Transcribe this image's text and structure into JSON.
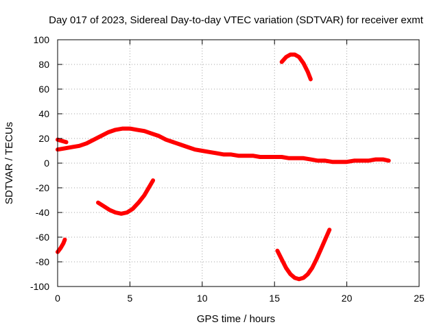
{
  "chart_data": {
    "type": "scatter",
    "title": "Day 017 of 2023, Sidereal Day-to-day VTEC variation (SDTVAR) for receiver exmt",
    "xlabel": "GPS time / hours",
    "ylabel": "SDTVAR / TECUs",
    "xlim": [
      0,
      25
    ],
    "ylim": [
      -100,
      100
    ],
    "xticks": [
      0,
      5,
      10,
      15,
      20,
      25
    ],
    "xtick_labels": [
      "0",
      "5",
      "10",
      "15",
      "20",
      "25"
    ],
    "yticks": [
      -100,
      -80,
      -60,
      -40,
      -20,
      0,
      20,
      40,
      60,
      80,
      100
    ],
    "ytick_labels": [
      "-100",
      "-80",
      "-60",
      "-40",
      "-20",
      "0",
      "20",
      "40",
      "60",
      "80",
      "100"
    ],
    "grid": true,
    "series_color": "#ff0000",
    "series": [
      {
        "name": "main-band",
        "x": [
          0.0,
          0.5,
          1.0,
          1.5,
          2.0,
          2.5,
          3.0,
          3.5,
          4.0,
          4.5,
          5.0,
          5.5,
          6.0,
          6.5,
          7.0,
          7.5,
          8.0,
          8.5,
          9.0,
          9.5,
          10.0,
          10.5,
          11.0,
          11.5,
          12.0,
          12.5,
          13.0,
          13.5,
          14.0,
          14.5,
          15.0,
          15.5,
          16.0,
          16.5,
          17.0,
          17.5,
          18.0,
          18.5,
          19.0,
          19.5,
          20.0,
          20.5,
          21.0,
          21.5,
          22.0,
          22.5,
          22.9
        ],
        "y": [
          11,
          12,
          13,
          14,
          16,
          19,
          22,
          25,
          27,
          28,
          28,
          27,
          26,
          24,
          22,
          19,
          17,
          15,
          13,
          11,
          10,
          9,
          8,
          7,
          7,
          6,
          6,
          6,
          5,
          5,
          5,
          5,
          4,
          4,
          4,
          3,
          2,
          2,
          1,
          1,
          1,
          2,
          2,
          2,
          3,
          3,
          2
        ]
      },
      {
        "name": "early-upper-branch",
        "x": [
          0.0,
          0.3,
          0.6
        ],
        "y": [
          19,
          18,
          17
        ]
      },
      {
        "name": "morning-dip",
        "x": [
          2.8,
          3.2,
          3.6,
          4.0,
          4.4,
          4.8,
          5.2,
          5.6,
          6.0,
          6.3,
          6.6
        ],
        "y": [
          -32,
          -35,
          -38,
          -40,
          -41,
          -40,
          -37,
          -32,
          -26,
          -20,
          -14
        ]
      },
      {
        "name": "early-low-arc",
        "x": [
          0.0,
          0.2,
          0.4,
          0.5
        ],
        "y": [
          -72,
          -69,
          -65,
          -62
        ]
      },
      {
        "name": "afternoon-peak",
        "x": [
          15.5,
          15.8,
          16.1,
          16.4,
          16.7,
          17.0,
          17.3,
          17.5
        ],
        "y": [
          82,
          86,
          88,
          88,
          86,
          81,
          74,
          68
        ]
      },
      {
        "name": "afternoon-trough",
        "x": [
          15.2,
          15.5,
          15.8,
          16.1,
          16.4,
          16.7,
          17.0,
          17.3,
          17.6,
          17.9,
          18.2,
          18.5,
          18.8
        ],
        "y": [
          -71,
          -78,
          -85,
          -90,
          -93,
          -94,
          -93,
          -90,
          -85,
          -78,
          -70,
          -62,
          -54
        ]
      }
    ]
  }
}
